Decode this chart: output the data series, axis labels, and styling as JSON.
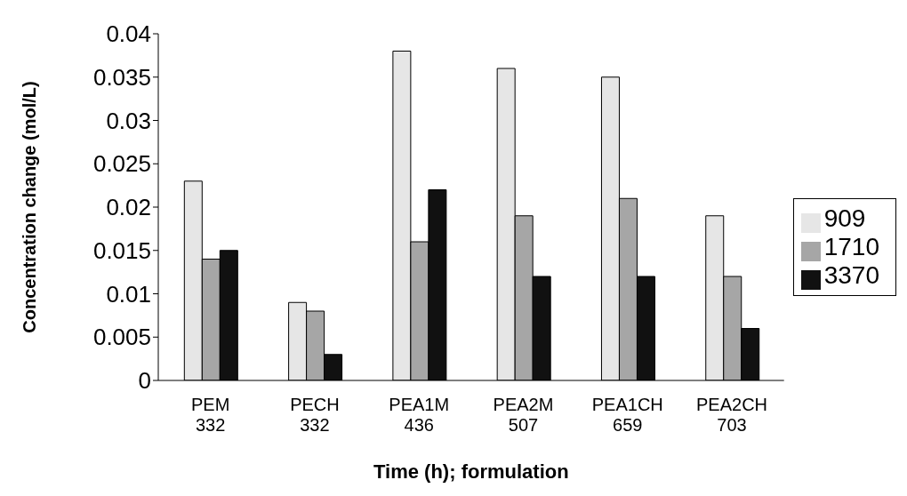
{
  "chart_data": {
    "type": "bar",
    "xlabel": "Time (h); formulation",
    "ylabel": "Concentration change  (mol/L)",
    "categories": [
      "PEM\n332",
      "PECH\n332",
      "PEA1M\n436",
      "PEA2M\n507",
      "PEA1CH\n659",
      "PEA2CH\n703"
    ],
    "series": [
      {
        "name": "909",
        "color": "#e6e6e6",
        "values": [
          0.023,
          0.009,
          0.038,
          0.036,
          0.035,
          0.019
        ]
      },
      {
        "name": "1710",
        "color": "#a6a6a6",
        "values": [
          0.014,
          0.008,
          0.016,
          0.019,
          0.021,
          0.012
        ]
      },
      {
        "name": "3370",
        "color": "#111111",
        "values": [
          0.015,
          0.003,
          0.022,
          0.012,
          0.012,
          0.006
        ]
      }
    ],
    "ylim": [
      0,
      0.04
    ],
    "yticks": [
      0,
      0.005,
      0.01,
      0.015,
      0.02,
      0.025,
      0.03,
      0.035,
      0.04
    ],
    "grid": false,
    "legend": "right"
  }
}
